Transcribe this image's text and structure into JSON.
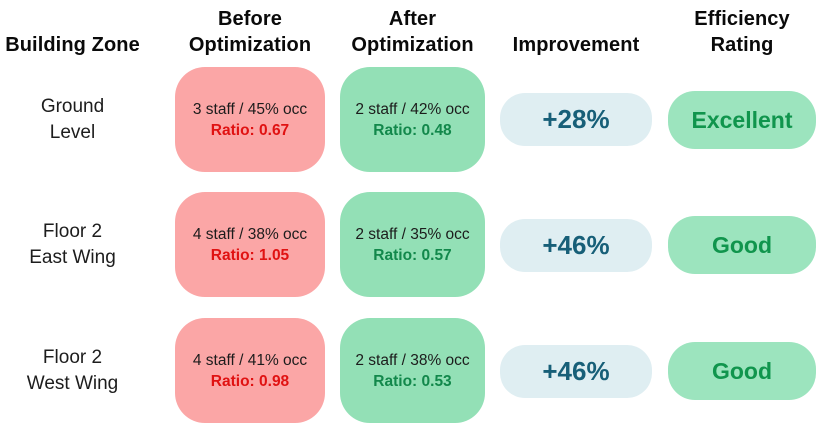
{
  "colors": {
    "header_text": "#0a0a0a",
    "zone_text": "#1d1d1d",
    "cell_text": "#1c1c1c",
    "before_box_bg": "#FBA6A6",
    "after_box_bg": "#93E0B6",
    "rating_box_bg": "#9CE4BE",
    "improvement_box_bg": "#DFEEF2",
    "before_ratio_text": "#E01212",
    "after_ratio_text": "#12884B",
    "improvement_text": "#175F78",
    "rating_text": "#10954D"
  },
  "headers": {
    "zone": "Building Zone",
    "before": [
      "Before",
      "Optimization"
    ],
    "after": [
      "After",
      "Optimization"
    ],
    "improvement": "Improvement",
    "rating": [
      "Efficiency",
      "Rating"
    ]
  },
  "rows": [
    {
      "zone": [
        "Ground",
        "Level"
      ],
      "before_stats": "3 staff / 45% occ",
      "before_ratio": "Ratio: 0.67",
      "after_stats": "2 staff / 42% occ",
      "after_ratio": "Ratio: 0.48",
      "improvement": "+28%",
      "rating": "Excellent"
    },
    {
      "zone": [
        "Floor 2",
        "East Wing"
      ],
      "before_stats": "4 staff / 38% occ",
      "before_ratio": "Ratio: 1.05",
      "after_stats": "2 staff / 35% occ",
      "after_ratio": "Ratio: 0.57",
      "improvement": "+46%",
      "rating": "Good"
    },
    {
      "zone": [
        "Floor 2",
        "West Wing"
      ],
      "before_stats": "4 staff / 41% occ",
      "before_ratio": "Ratio: 0.98",
      "after_stats": "2 staff / 38% occ",
      "after_ratio": "Ratio: 0.53",
      "improvement": "+46%",
      "rating": "Good"
    }
  ],
  "chart_data": {
    "type": "table",
    "columns": [
      "Building Zone",
      "Before Optimization",
      "After Optimization",
      "Improvement",
      "Efficiency Rating"
    ],
    "rows": [
      {
        "zone": "Ground Level",
        "before_staff": 3,
        "before_occupancy_pct": 45,
        "before_ratio": 0.67,
        "after_staff": 2,
        "after_occupancy_pct": 42,
        "after_ratio": 0.48,
        "improvement_pct": 28,
        "rating": "Excellent"
      },
      {
        "zone": "Floor 2 East Wing",
        "before_staff": 4,
        "before_occupancy_pct": 38,
        "before_ratio": 1.05,
        "after_staff": 2,
        "after_occupancy_pct": 35,
        "after_ratio": 0.57,
        "improvement_pct": 46,
        "rating": "Good"
      },
      {
        "zone": "Floor 2 West Wing",
        "before_staff": 4,
        "before_occupancy_pct": 41,
        "before_ratio": 0.98,
        "after_staff": 2,
        "after_occupancy_pct": 38,
        "after_ratio": 0.53,
        "improvement_pct": 46,
        "rating": "Good"
      }
    ]
  }
}
